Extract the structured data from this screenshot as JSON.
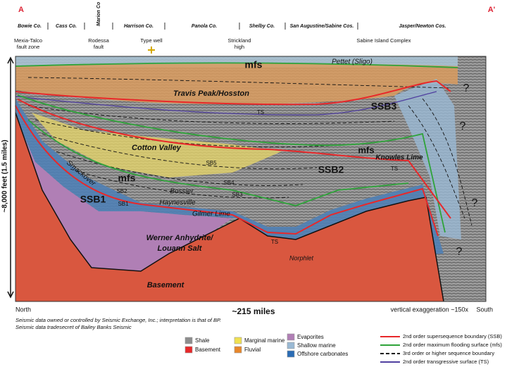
{
  "header": {
    "left_marker": "A",
    "right_marker": "A'",
    "counties": [
      "Bowie Co.",
      "Cass Co.",
      "Marion Co",
      "Harrison Co.",
      "Panola Co.",
      "Shelby Co.",
      "San Augustine/Sabine Cos.",
      "Jasper/Newton Cos."
    ]
  },
  "features": [
    "Mexia-Talco",
    "fault zone",
    "Rodessa",
    "fault",
    "Type well",
    "Strickland",
    "high",
    "Sabine Island Complex"
  ],
  "section": {
    "labels": [
      "mfs",
      "Pettet (Sligo)",
      "Travis Peak/Hosston",
      "SSB3",
      "TS",
      "Cotton Valley",
      "SB5",
      "mfs",
      "Knowles Lime",
      "SSB2",
      "TS",
      "Smackover",
      "mfs",
      "SB2",
      "SB1",
      "SSB1",
      "Bossier",
      "SB4",
      "SB3",
      "Haynesville",
      "Gilmer Lime",
      "Werner Anhydrite/",
      "Louann Salt",
      "TS",
      "Norphlet",
      "Basement",
      "?",
      "?",
      "?",
      "?"
    ]
  },
  "axis": {
    "vertical": "~8,000 feet (1.5 miles)",
    "left": "North",
    "center": "~215 miles",
    "exaggeration": "vertical exaggeration ~150x",
    "right": "South"
  },
  "credits": [
    "Seismic data owned or controlled by Seismic Exchange, Inc.; interpretation is that of BP.",
    "Seismic data tradesecret of Bailey Banks Seismic"
  ],
  "legend": {
    "fills": [
      "Shale",
      "Basement",
      "Marginal marine",
      "Fluvial",
      "Evaporites",
      "Shallow marine",
      "Offshore carbonates"
    ],
    "lines": [
      "2nd order supersequence boundary (SSB)",
      "2nd order maximum flooding surface (mfs)",
      "3rd order or higher sequence boundary",
      "2nd order transgressive surface (TS)"
    ]
  }
}
